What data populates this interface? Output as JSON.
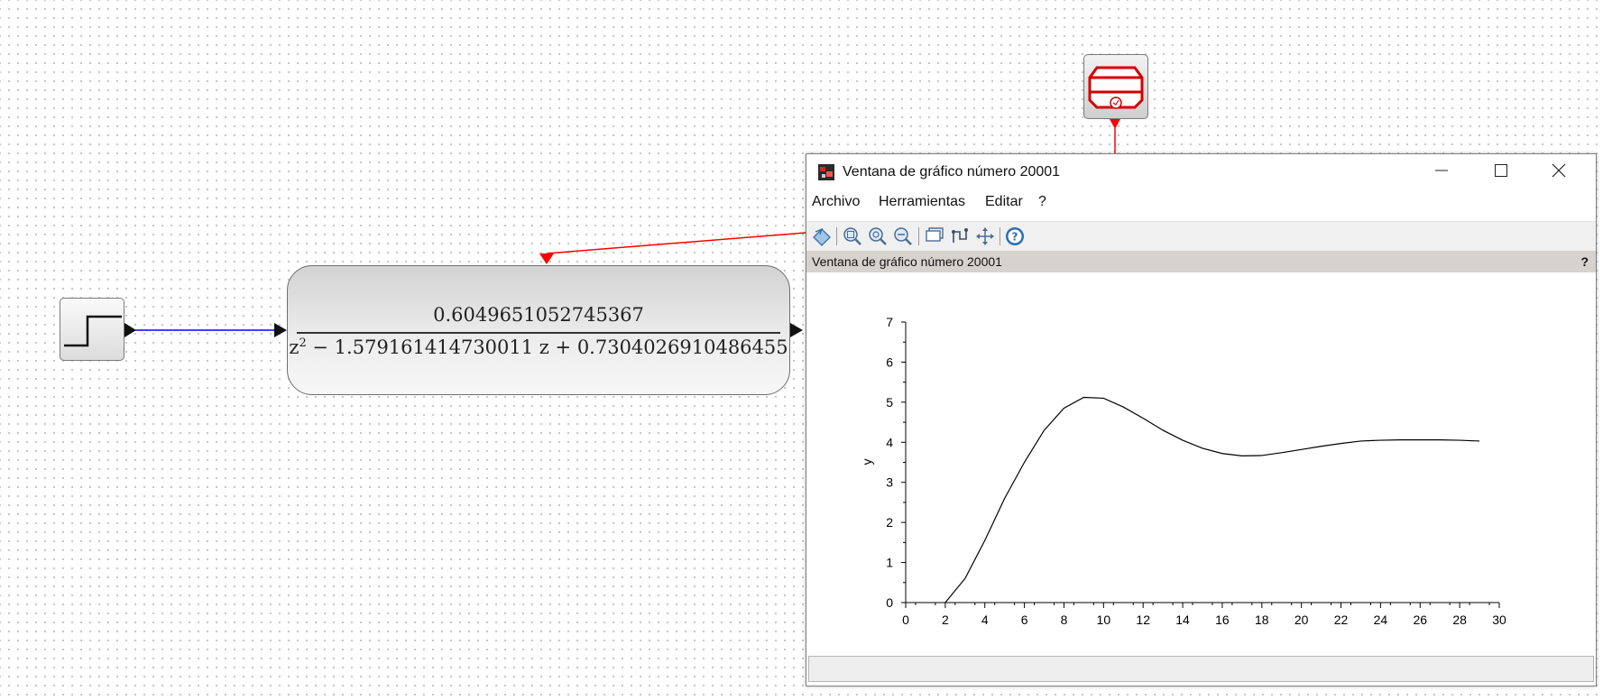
{
  "diagram": {
    "transfer_function": {
      "numerator": "0.6049651052745367",
      "denominator_lead": "z",
      "denominator_exp": "2",
      "denominator_rest": " − 1.579161414730011 z + 0.7304026910486455"
    },
    "colors": {
      "data_link": "#0000ff",
      "event_link": "#ff0000",
      "scope_accent": "#d40000"
    }
  },
  "graphic_window": {
    "title": "Ventana de gráfico número 20001",
    "menu": [
      "Archivo",
      "Herramientas",
      "Editar",
      "?"
    ],
    "toolbar_icons": [
      "rotate-icon",
      "zoom-in-icon",
      "zoom-reset-icon",
      "zoom-out-icon",
      "datatip-icon",
      "curve-edit-icon",
      "pan-icon",
      "help-icon"
    ],
    "info_text": "Ventana de gráfico número 20001",
    "info_help": "?",
    "status_text": ""
  },
  "chart_data": {
    "type": "line",
    "ylabel": "y",
    "xlim": [
      0,
      30
    ],
    "ylim": [
      0,
      7
    ],
    "x_ticks": [
      "0",
      "2",
      "4",
      "6",
      "8",
      "10",
      "12",
      "14",
      "16",
      "18",
      "20",
      "22",
      "24",
      "26",
      "28",
      "30"
    ],
    "y_ticks": [
      "0",
      "1",
      "2",
      "3",
      "4",
      "5",
      "6",
      "7"
    ],
    "grid": false,
    "series": [
      {
        "x": [
          2,
          3,
          4,
          5,
          6,
          7,
          8,
          9,
          10,
          11,
          12,
          13,
          14,
          15,
          16,
          17,
          18,
          19,
          20,
          21,
          22,
          23,
          24,
          25,
          26,
          27,
          28,
          29
        ],
        "y": [
          0,
          0.6,
          1.55,
          2.6,
          3.5,
          4.3,
          4.85,
          5.12,
          5.1,
          4.88,
          4.6,
          4.3,
          4.05,
          3.85,
          3.72,
          3.66,
          3.67,
          3.74,
          3.82,
          3.9,
          3.97,
          4.03,
          4.05,
          4.06,
          4.06,
          4.06,
          4.05,
          4.03
        ]
      }
    ]
  }
}
